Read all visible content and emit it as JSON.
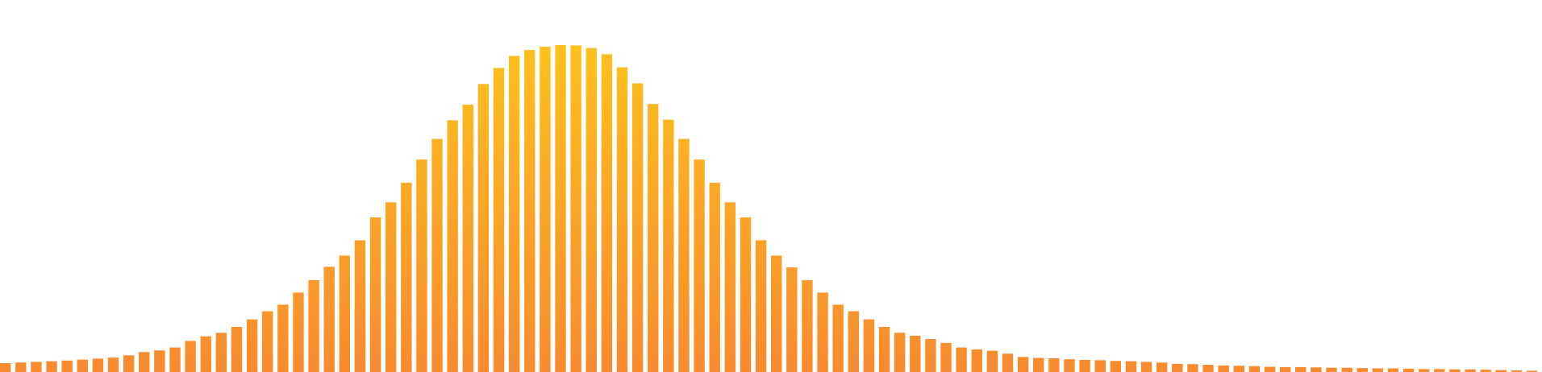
{
  "chart_data": {
    "type": "bar",
    "title": "",
    "xlabel": "",
    "ylabel": "",
    "grid": false,
    "legend": "none",
    "ylim": [
      0,
      100
    ],
    "colors": {
      "bottom": "#F98A2E",
      "top": "#FEC11D"
    },
    "values": [
      2.7,
      2.9,
      3.1,
      3.3,
      3.5,
      3.8,
      4.1,
      4.4,
      5.1,
      6.1,
      6.6,
      7.5,
      9.5,
      10.9,
      12.0,
      13.8,
      16.1,
      18.6,
      20.6,
      24.3,
      28.1,
      32.2,
      35.6,
      40.3,
      47.3,
      51.9,
      57.9,
      65.0,
      71.3,
      77.0,
      81.8,
      88.1,
      93.0,
      96.7,
      98.5,
      99.5,
      100.0,
      99.9,
      99.1,
      97.2,
      93.2,
      88.3,
      82.0,
      77.2,
      71.3,
      65.0,
      57.9,
      51.9,
      47.3,
      40.3,
      35.6,
      32.0,
      28.1,
      24.3,
      20.6,
      18.6,
      16.1,
      13.8,
      12.0,
      11.1,
      10.1,
      8.9,
      7.5,
      6.9,
      6.5,
      5.6,
      4.6,
      4.3,
      4.2,
      3.9,
      3.7,
      3.6,
      3.4,
      3.3,
      3.1,
      2.9,
      2.5,
      2.4,
      2.2,
      2.0,
      1.9,
      1.8,
      1.6,
      1.5,
      1.5,
      1.4,
      1.3,
      1.3,
      1.2,
      1.1,
      1.1,
      1.0,
      0.9,
      0.9,
      0.8,
      0.8,
      0.7,
      0.6,
      0.5,
      0.4
    ]
  }
}
